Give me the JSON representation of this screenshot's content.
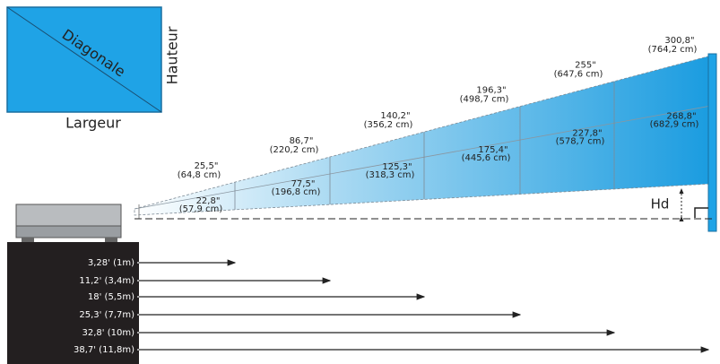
{
  "screen_legend": {
    "diagonal": "Diagonale",
    "height": "Hauteur",
    "width": "Largeur"
  },
  "hd_label": "Hd",
  "sizes": [
    {
      "distance": "3,28' (1m)",
      "diagonal": "25,5\"",
      "diagonal_cm": "(64,8 cm)",
      "width": "22,8\"",
      "width_cm": "(57,9 cm)"
    },
    {
      "distance": "11,2' (3,4m)",
      "diagonal": "86,7\"",
      "diagonal_cm": "(220,2 cm)",
      "width": "77,5\"",
      "width_cm": "(196,8 cm)"
    },
    {
      "distance": "18' (5,5m)",
      "diagonal": "140,2\"",
      "diagonal_cm": "(356,2 cm)",
      "width": "125,3\"",
      "width_cm": "(318,3 cm)"
    },
    {
      "distance": "25,3' (7,7m)",
      "diagonal": "196,3\"",
      "diagonal_cm": "(498,7 cm)",
      "width": "175,4\"",
      "width_cm": "(445,6 cm)"
    },
    {
      "distance": "32,8' (10m)",
      "diagonal": "255\"",
      "diagonal_cm": "(647,6 cm)",
      "width": "227,8\"",
      "width_cm": "(578,7 cm)"
    },
    {
      "distance": "38,7' (11,8m)",
      "diagonal": "300,8\"",
      "diagonal_cm": "(764,2 cm)",
      "width": "268,8\"",
      "width_cm": "(682,9 cm)"
    }
  ]
}
